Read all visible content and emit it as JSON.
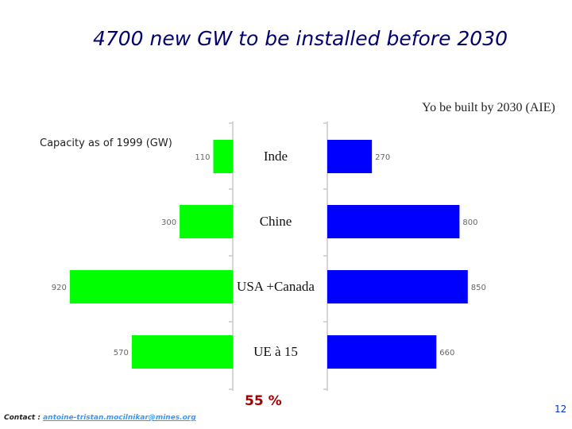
{
  "chart_data": {
    "type": "butterfly",
    "title": "4700 new GW to be installed before 2030",
    "categories": [
      "Inde",
      "Chine",
      "USA +Canada",
      "UE à 15"
    ],
    "series": [
      {
        "name": "Capacity as of 1999 (GW)",
        "color": "#00ff00",
        "values": [
          110,
          300,
          920,
          570
        ]
      },
      {
        "name": "Yo be built by 2030 (AIE)",
        "color": "#0000ff",
        "values": [
          270,
          800,
          850,
          660
        ]
      }
    ],
    "xlim": [
      0,
      1000
    ],
    "annotation": "55 %",
    "contact_label": "Contact :",
    "contact_email": "antoine-tristan.mocilnikar@mines.org",
    "page_number": "12"
  }
}
